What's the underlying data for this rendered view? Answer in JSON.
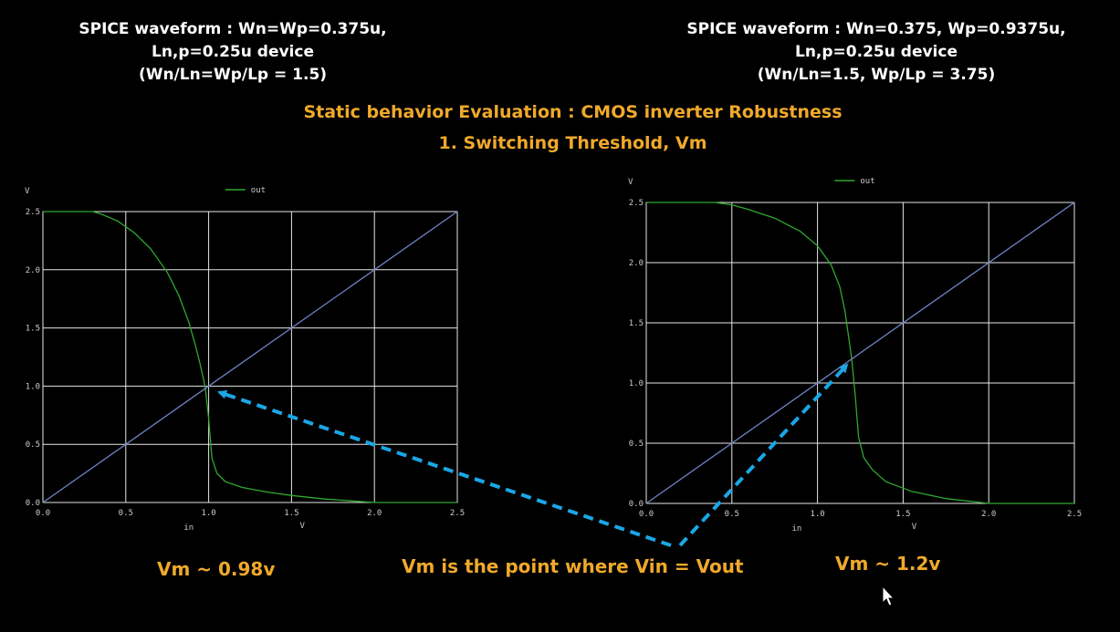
{
  "caption_left": [
    "SPICE waveform : Wn=Wp=0.375u,",
    "Ln,p=0.25u device",
    "(Wn/Ln=Wp/Lp = 1.5)"
  ],
  "caption_right": [
    "SPICE waveform : Wn=0.375, Wp=0.9375u,",
    "Ln,p=0.25u device",
    "(Wn/Ln=1.5, Wp/Lp = 3.75)"
  ],
  "title_line1": "Static behavior Evaluation : CMOS inverter Robustness",
  "title_line2": "1. Switching Threshold, Vm",
  "note_left": "Vm ~ 0.98v",
  "note_center": "Vm is the point where Vin = Vout",
  "note_right": "Vm ~ 1.2v",
  "colors": {
    "accent": "#f0a92a",
    "out_trace": "#2fa82f",
    "diagonal": "#6f82c4",
    "arrow": "#1aa7e6",
    "grid": "#e6e6e6"
  },
  "chart_data": [
    {
      "type": "line",
      "xlabel": "in",
      "x_unit": "V",
      "y_unit": "V",
      "xlim": [
        0,
        2.5
      ],
      "ylim": [
        0,
        2.5
      ],
      "x_ticks": [
        "0.0",
        "0.5",
        "1.0",
        "1.5",
        "2.0",
        "2.5"
      ],
      "y_ticks": [
        "0.0",
        "0.5",
        "1.0",
        "1.5",
        "2.0",
        "2.5"
      ],
      "grid": true,
      "legend": "top-center",
      "series": [
        {
          "name": "out",
          "x": [
            0,
            0.3,
            0.35,
            0.45,
            0.55,
            0.65,
            0.75,
            0.82,
            0.88,
            0.92,
            0.95,
            0.97,
            0.98,
            1.0,
            1.02,
            1.05,
            1.1,
            1.2,
            1.35,
            1.5,
            1.7,
            2.0,
            2.5
          ],
          "y": [
            2.5,
            2.5,
            2.48,
            2.42,
            2.32,
            2.18,
            1.98,
            1.78,
            1.55,
            1.35,
            1.18,
            1.05,
            0.98,
            0.72,
            0.38,
            0.25,
            0.18,
            0.13,
            0.09,
            0.06,
            0.03,
            0.0,
            0.0
          ]
        },
        {
          "name": "",
          "x": [
            0,
            2.5
          ],
          "y": [
            0,
            2.5
          ]
        }
      ]
    },
    {
      "type": "line",
      "xlabel": "in",
      "x_unit": "V",
      "y_unit": "V",
      "xlim": [
        0,
        2.5
      ],
      "ylim": [
        0,
        2.5
      ],
      "x_ticks": [
        "0.0",
        "0.5",
        "1.0",
        "1.5",
        "2.0",
        "2.5"
      ],
      "y_ticks": [
        "0.0",
        "0.5",
        "1.0",
        "1.5",
        "2.0",
        "2.5"
      ],
      "grid": true,
      "legend": "top-center",
      "series": [
        {
          "name": "out",
          "x": [
            0,
            0.4,
            0.5,
            0.6,
            0.75,
            0.9,
            1.0,
            1.08,
            1.13,
            1.16,
            1.18,
            1.2,
            1.22,
            1.24,
            1.27,
            1.32,
            1.4,
            1.55,
            1.75,
            2.0,
            2.5
          ],
          "y": [
            2.5,
            2.5,
            2.48,
            2.44,
            2.37,
            2.26,
            2.14,
            1.98,
            1.8,
            1.6,
            1.4,
            1.2,
            0.9,
            0.55,
            0.38,
            0.28,
            0.18,
            0.1,
            0.04,
            0.0,
            0.0
          ]
        },
        {
          "name": "",
          "x": [
            0,
            2.5
          ],
          "y": [
            0,
            2.5
          ]
        }
      ]
    }
  ]
}
